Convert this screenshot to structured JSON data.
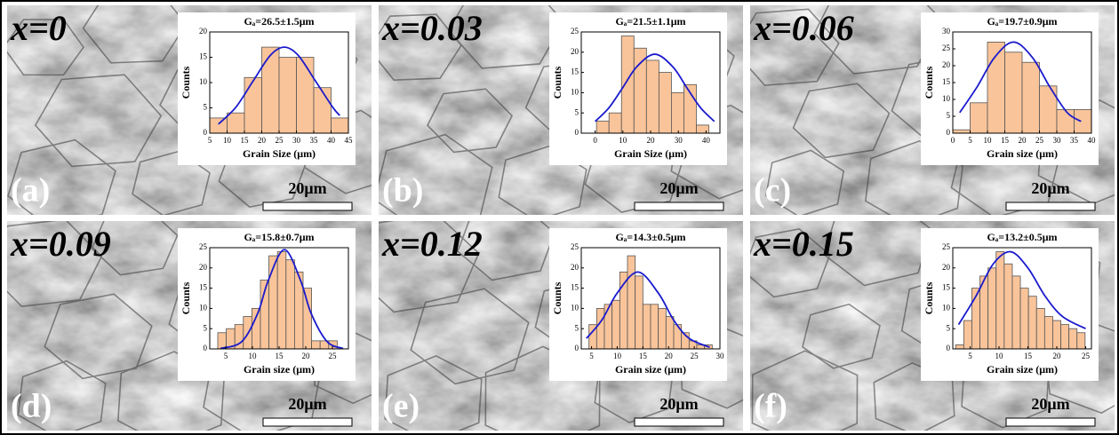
{
  "chart_data": [
    {
      "type": "histogram",
      "title": "Gₐ=26.5±1.5μm",
      "x_label": "Grain Size (μm)",
      "y_label": "Counts",
      "bins": [
        5,
        10,
        15,
        20,
        25,
        30,
        35,
        40,
        45
      ],
      "values": [
        3,
        4,
        11,
        17,
        15,
        15,
        9,
        3
      ],
      "color": "#f9c49a",
      "fit": {
        "x": [
          7.5,
          12.5,
          17.5,
          22.5,
          26.5,
          30.5,
          35.5,
          40.5,
          42.5
        ],
        "values": [
          1.8,
          5.1,
          10.3,
          15.4,
          17,
          15.4,
          10.3,
          5.1,
          3.5
        ],
        "color": "#1a1acd"
      },
      "xlim": [
        5,
        45
      ],
      "ylim": [
        0,
        20
      ],
      "xticks": [
        5,
        10,
        15,
        20,
        25,
        30,
        35,
        40,
        45
      ],
      "yticks": [
        0,
        5,
        10,
        15,
        20
      ],
      "annotations": [
        "x=0",
        "(a)",
        "20μm"
      ]
    },
    {
      "type": "histogram",
      "title": "Gₐ=21.5±1.1μm",
      "x_label": "Grain Size (μm)",
      "y_label": "Counts",
      "bins": [
        0.5,
        5,
        9.5,
        14,
        18.5,
        23,
        27.5,
        32,
        36.5,
        41
      ],
      "values": [
        3,
        5,
        24,
        21,
        18,
        15,
        10,
        12,
        2
      ],
      "color": "#f9c49a",
      "fit": {
        "x": [
          0,
          5,
          10,
          15,
          21.5,
          28,
          33,
          38,
          43
        ],
        "values": [
          2.9,
          6.3,
          11.3,
          16.4,
          19.5,
          16.4,
          11.3,
          6.3,
          2.9
        ],
        "color": "#1a1acd"
      },
      "xlim": [
        -5,
        45
      ],
      "ylim": [
        0,
        25
      ],
      "xticks": [
        0,
        10,
        20,
        30,
        40
      ],
      "yticks": [
        0,
        5,
        10,
        15,
        20,
        25
      ],
      "annotations": [
        "x=0.03",
        "(b)",
        "20μm"
      ]
    },
    {
      "type": "histogram",
      "title": "Gₐ=19.7±0.9μm",
      "x_label": "Grain size (μm)",
      "y_label": "Counts",
      "bins": [
        0,
        5,
        10,
        15,
        20,
        25,
        30,
        35,
        40
      ],
      "values": [
        1,
        9,
        27,
        24,
        21,
        14,
        7,
        7
      ],
      "color": "#f9c49a",
      "fit": {
        "x": [
          2,
          7,
          12,
          17.5,
          23,
          28,
          33,
          37
        ],
        "values": [
          6.1,
          13.7,
          22.4,
          27,
          22.4,
          13.7,
          6.1,
          3.5
        ],
        "color": "#1a1acd"
      },
      "xlim": [
        0,
        40
      ],
      "ylim": [
        0,
        30
      ],
      "xticks": [
        0,
        5,
        10,
        15,
        20,
        25,
        30,
        35,
        40
      ],
      "yticks": [
        0,
        5,
        10,
        15,
        20,
        25,
        30
      ],
      "annotations": [
        "x=0.06",
        "(c)",
        "20μm"
      ]
    },
    {
      "type": "histogram",
      "title": "Gₐ=15.8±0.7μm",
      "x_label": "Grain size (μm)",
      "y_label": "Counts",
      "bins": [
        3.5,
        5.1,
        6.7,
        8.3,
        9.9,
        11.5,
        13.1,
        14.7,
        16.3,
        17.9,
        19.5,
        21.1,
        22.7,
        24.3,
        25.9
      ],
      "values": [
        4,
        5,
        6,
        8,
        10,
        17,
        23,
        24,
        22,
        19,
        15,
        2,
        2,
        2
      ],
      "color": "#f9c49a",
      "fit": {
        "x": [
          4,
          8,
          11,
          13,
          16,
          19,
          21,
          24,
          27
        ],
        "values": [
          0.1,
          1.8,
          8.8,
          17,
          24.5,
          17,
          8.8,
          1.8,
          0.1
        ],
        "color": "#1a1acd"
      },
      "xlim": [
        2,
        28
      ],
      "ylim": [
        0,
        25
      ],
      "xticks": [
        5,
        10,
        15,
        20,
        25
      ],
      "yticks": [
        0,
        5,
        10,
        15,
        20,
        25
      ],
      "annotations": [
        "x=0.09",
        "(d)",
        "20μm"
      ]
    },
    {
      "type": "histogram",
      "title": "Gₐ=14.3±0.5μm",
      "x_label": "Grain size (μm)",
      "y_label": "Counts",
      "bins": [
        4.5,
        6,
        7.5,
        9,
        10.5,
        12,
        13.5,
        15,
        16.5,
        18,
        19.5,
        21,
        22.5,
        24,
        25.5,
        27,
        28.5
      ],
      "values": [
        6,
        10,
        11,
        12,
        19,
        23,
        18,
        11,
        11,
        10,
        8,
        6,
        4,
        2,
        1,
        1
      ],
      "color": "#f9c49a",
      "fit": {
        "x": [
          4,
          7,
          10,
          14,
          18,
          21,
          24,
          28
        ],
        "values": [
          2.6,
          7.1,
          13.8,
          19,
          13.8,
          7.1,
          2.6,
          0.4
        ],
        "color": "#1a1acd"
      },
      "xlim": [
        3,
        30
      ],
      "ylim": [
        0,
        25
      ],
      "xticks": [
        5,
        10,
        15,
        20,
        25,
        30
      ],
      "yticks": [
        0,
        5,
        10,
        15,
        20,
        25
      ],
      "annotations": [
        "x=0.12",
        "(e)",
        "20μm"
      ]
    },
    {
      "type": "histogram",
      "title": "Gₐ=13.2±0.5μm",
      "x_label": "Grain size (μm)",
      "y_label": "Counts",
      "bins": [
        2.5,
        3.9,
        5.3,
        6.7,
        8.1,
        9.5,
        10.9,
        12.3,
        13.7,
        15.1,
        16.5,
        17.9,
        19.3,
        20.7,
        22.1,
        23.5,
        24.9
      ],
      "values": [
        1,
        7,
        15,
        18,
        20,
        24,
        21,
        18,
        15,
        13,
        10,
        8,
        7,
        6,
        5,
        4
      ],
      "color": "#f9c49a",
      "fit": {
        "x": [
          3,
          6,
          9,
          12,
          15,
          18,
          21,
          25
        ],
        "values": [
          6,
          13,
          21,
          24,
          20,
          13,
          8,
          5
        ],
        "color": "#1a1acd"
      },
      "xlim": [
        2,
        26
      ],
      "ylim": [
        0,
        25
      ],
      "xticks": [
        5,
        10,
        15,
        20,
        25
      ],
      "yticks": [
        0,
        5,
        10,
        15,
        20,
        25
      ],
      "annotations": [
        "x=0.15",
        "(f)",
        "20μm"
      ]
    }
  ]
}
